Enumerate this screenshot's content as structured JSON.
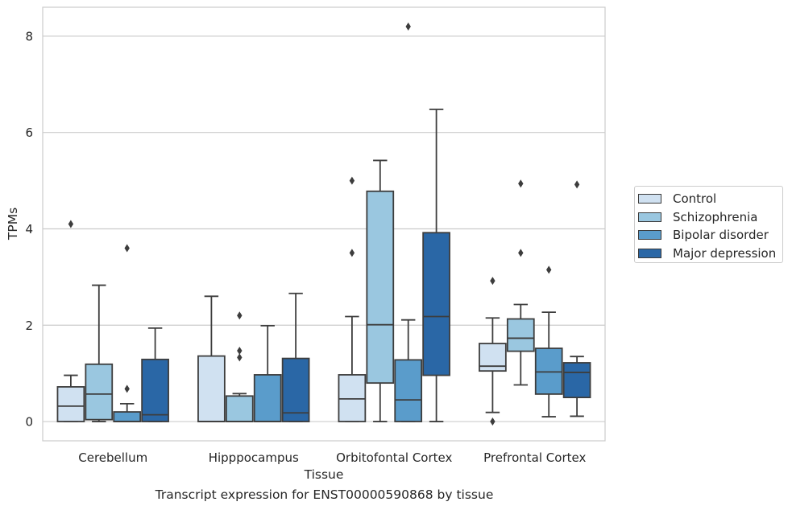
{
  "caption": "Transcript expression for ENST00000590868 by tissue",
  "chart_data": {
    "type": "box",
    "xlabel": "Tissue",
    "ylabel": "TPMs",
    "ylim": [
      -0.4,
      8.6
    ],
    "yticks": [
      0,
      2,
      4,
      6,
      8
    ],
    "grid": "horizontal",
    "legend_placement": "right",
    "categories": [
      "Cerebellum",
      "Hipppocampus",
      "Orbitofontal Cortex",
      "Prefrontal Cortex"
    ],
    "series": [
      {
        "name": "Control",
        "color": "#d0e1f1",
        "boxes": [
          {
            "whislo": 0,
            "q1": 0,
            "med": 0.32,
            "q3": 0.72,
            "whishi": 0.96,
            "fliers": [
              4.1
            ]
          },
          {
            "whislo": 0,
            "q1": 0,
            "med": 0,
            "q3": 1.36,
            "whishi": 2.6,
            "fliers": []
          },
          {
            "whislo": 0,
            "q1": 0,
            "med": 0.47,
            "q3": 0.97,
            "whishi": 2.18,
            "fliers": [
              3.5,
              5.0
            ]
          },
          {
            "whislo": 0.19,
            "q1": 1.05,
            "med": 1.15,
            "q3": 1.62,
            "whishi": 2.15,
            "fliers": [
              0,
              2.92
            ]
          }
        ]
      },
      {
        "name": "Schizophrenia",
        "color": "#9ac7e0",
        "boxes": [
          {
            "whislo": 0,
            "q1": 0.04,
            "med": 0.57,
            "q3": 1.19,
            "whishi": 2.83,
            "fliers": []
          },
          {
            "whislo": 0,
            "q1": 0,
            "med": 0,
            "q3": 0.53,
            "whishi": 0.58,
            "fliers": [
              1.33,
              1.47,
              2.2
            ]
          },
          {
            "whislo": 0,
            "q1": 0.8,
            "med": 2.01,
            "q3": 4.78,
            "whishi": 5.42,
            "fliers": []
          },
          {
            "whislo": 0.76,
            "q1": 1.46,
            "med": 1.73,
            "q3": 2.13,
            "whishi": 2.43,
            "fliers": [
              3.5,
              4.94
            ]
          }
        ]
      },
      {
        "name": "Bipolar disorder",
        "color": "#5a9ccb",
        "boxes": [
          {
            "whislo": 0,
            "q1": 0,
            "med": 0,
            "q3": 0.2,
            "whishi": 0.37,
            "fliers": [
              0.68,
              3.6
            ]
          },
          {
            "whislo": 0,
            "q1": 0,
            "med": 0,
            "q3": 0.97,
            "whishi": 1.99,
            "fliers": []
          },
          {
            "whislo": 0,
            "q1": 0,
            "med": 0.45,
            "q3": 1.28,
            "whishi": 2.11,
            "fliers": [
              8.2
            ]
          },
          {
            "whislo": 0.1,
            "q1": 0.57,
            "med": 1.03,
            "q3": 1.52,
            "whishi": 2.27,
            "fliers": [
              3.15
            ]
          }
        ]
      },
      {
        "name": "Major depression",
        "color": "#2a67a6",
        "boxes": [
          {
            "whislo": 0,
            "q1": 0,
            "med": 0.14,
            "q3": 1.29,
            "whishi": 1.94,
            "fliers": []
          },
          {
            "whislo": 0,
            "q1": 0,
            "med": 0.18,
            "q3": 1.31,
            "whishi": 2.66,
            "fliers": []
          },
          {
            "whislo": 0,
            "q1": 0.96,
            "med": 2.18,
            "q3": 3.92,
            "whishi": 6.48,
            "fliers": []
          },
          {
            "whislo": 0.11,
            "q1": 0.5,
            "med": 1.02,
            "q3": 1.22,
            "whishi": 1.35,
            "fliers": [
              4.92
            ]
          }
        ]
      }
    ]
  }
}
